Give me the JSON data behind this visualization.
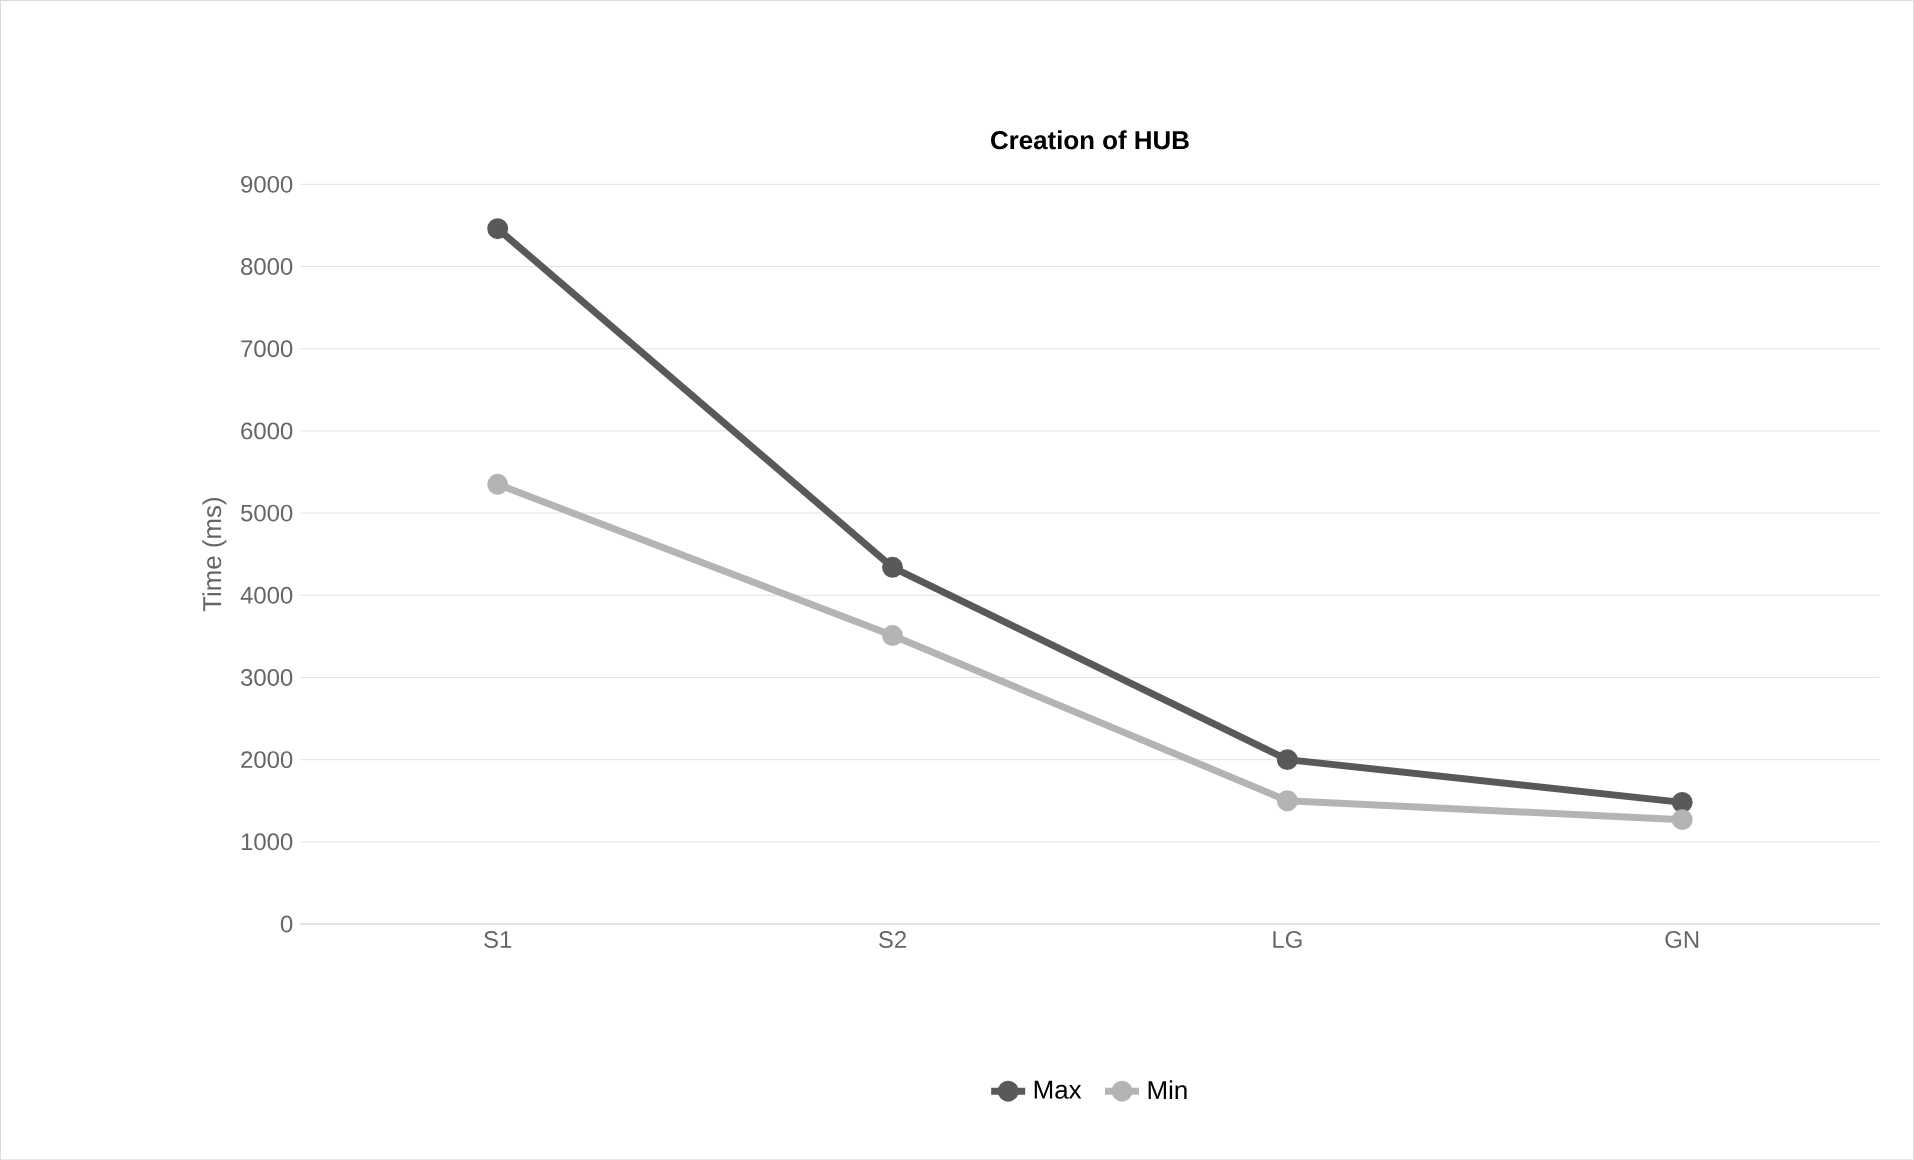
{
  "chart_data": {
    "type": "line",
    "title": "Creation of HUB",
    "ylabel": "Time (ms)",
    "categories": [
      "S1",
      "S2",
      "LG",
      "GN"
    ],
    "series": [
      {
        "name": "Max",
        "color": "#595959",
        "values": [
          8460,
          4340,
          2000,
          1480
        ]
      },
      {
        "name": "Min",
        "color": "#b4b4b4",
        "values": [
          5350,
          3510,
          1500,
          1270
        ]
      }
    ],
    "ylim": [
      0,
      9000
    ],
    "yticks": [
      0,
      1000,
      2000,
      3000,
      4000,
      5000,
      6000,
      7000,
      8000,
      9000
    ],
    "grid": "y",
    "legend": "bottom",
    "marker": "circle"
  }
}
